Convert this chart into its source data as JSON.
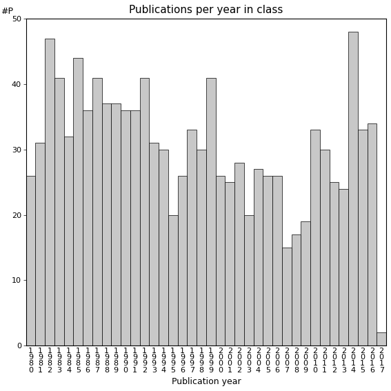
{
  "years": [
    "1980",
    "1981",
    "1982",
    "1983",
    "1984",
    "1985",
    "1986",
    "1987",
    "1988",
    "1989",
    "1990",
    "1991",
    "1992",
    "1993",
    "1994",
    "1995",
    "1996",
    "1997",
    "1998",
    "1999",
    "2000",
    "2001",
    "2002",
    "2003",
    "2004",
    "2005",
    "2006",
    "2007",
    "2008",
    "2009",
    "2010",
    "2011",
    "2012",
    "2013",
    "2014",
    "2015",
    "2016",
    "2017"
  ],
  "values": [
    26,
    31,
    47,
    41,
    32,
    44,
    36,
    41,
    37,
    37,
    36,
    36,
    41,
    31,
    30,
    20,
    26,
    33,
    30,
    41,
    26,
    25,
    28,
    20,
    27,
    26,
    26,
    15,
    17,
    19,
    33,
    30,
    25,
    24,
    48,
    33,
    34,
    2
  ],
  "title": "Publications per year in class",
  "xlabel": "Publication year",
  "ylabel": "#P",
  "ylim": [
    0,
    50
  ],
  "yticks": [
    0,
    10,
    20,
    30,
    40,
    50
  ],
  "bar_color": "#c8c8c8",
  "bar_edge_color": "#000000",
  "bar_edge_width": 0.5,
  "background_color": "#ffffff",
  "title_fontsize": 11,
  "label_fontsize": 9,
  "tick_fontsize": 8
}
